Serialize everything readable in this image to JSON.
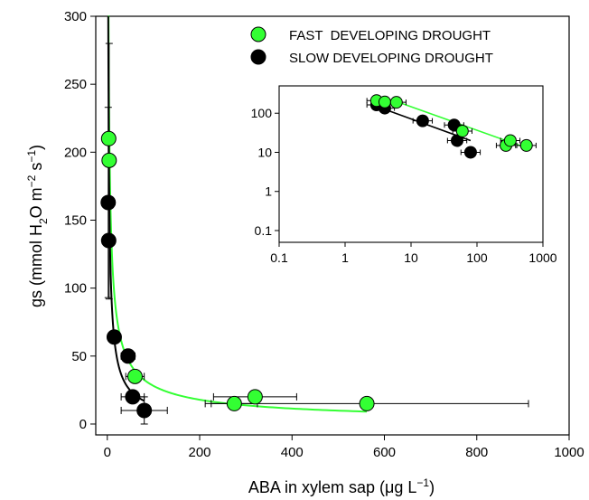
{
  "chart_data": {
    "type": "scatter",
    "main": {
      "xlabel": {
        "before": "ABA in xylem sap (",
        "mu": "μ",
        "after": "g L",
        "sup": "−1",
        "close": ")"
      },
      "ylabel": {
        "before": "gs (mmol H",
        "sub": "2",
        "mid": "O m",
        "sup1": "−2",
        "mid2": " s",
        "sup2": "−1",
        "close": ")"
      },
      "xlim": [
        -25,
        1000
      ],
      "ylim": [
        -8,
        300
      ],
      "xticks": [
        "0",
        "200",
        "400",
        "600",
        "800",
        "1000"
      ],
      "yticks": [
        "0",
        "50",
        "100",
        "150",
        "200",
        "250",
        "300"
      ],
      "series": [
        {
          "name": "FAST  DEVELOPING DROUGHT",
          "color": "#33ff33",
          "points": [
            {
              "x": 3,
              "y": 210,
              "xerr": 2,
              "yerr": 0
            },
            {
              "x": 4,
              "y": 194,
              "xerr": 2,
              "yerr": 0
            },
            {
              "x": 60,
              "y": 35,
              "xerr": 20,
              "yerr": 0
            },
            {
              "x": 275,
              "y": 15,
              "xerr": 50,
              "yerr": 0
            },
            {
              "x": 320,
              "y": 20,
              "xerr": 90,
              "yerr": 0
            },
            {
              "x": 562,
              "y": 15,
              "xerr": 350,
              "yerr": 0
            }
          ]
        },
        {
          "name": "SLOW DEVELOPING DROUGHT",
          "color": "#000000",
          "points": [
            {
              "x": 2,
              "y": 163,
              "xerr": 0,
              "yerr": 70
            },
            {
              "x": 3,
              "y": 135,
              "xerr": 0,
              "yerr": 0
            },
            {
              "x": 15,
              "y": 64,
              "xerr": 5,
              "yerr": 0
            },
            {
              "x": 45,
              "y": 50,
              "xerr": 15,
              "yerr": 0
            },
            {
              "x": 55,
              "y": 20,
              "xerr": 25,
              "yerr": 0
            },
            {
              "x": 80,
              "y": 10,
              "xerr": 50,
              "yerr": 10
            }
          ]
        }
      ],
      "fits": [
        {
          "series": "FAST  DEVELOPING DROUGHT",
          "color": "#33ff33",
          "a": 560,
          "b": 0.65,
          "xmin": 2,
          "xmax": 562
        },
        {
          "series": "SLOW DEVELOPING DROUGHT",
          "color": "#000000",
          "a": 520,
          "b": 0.78,
          "xmin": 2,
          "xmax": 80
        }
      ],
      "extra_error_bars": [
        {
          "x": 4,
          "y": 194,
          "ylow": 92,
          "yhigh": 280
        }
      ]
    },
    "inset": {
      "scale": "log",
      "xlim": [
        0.1,
        1000
      ],
      "ylim": [
        0.05,
        500
      ],
      "xticks": [
        "0.1",
        "1",
        "10",
        "100",
        "1000"
      ],
      "yticks": [
        "0.1",
        "1",
        "10",
        "100"
      ],
      "series": [
        {
          "name": "FAST  DEVELOPING DROUGHT",
          "color": "#33ff33",
          "points": [
            {
              "x": 3,
              "y": 210
            },
            {
              "x": 4,
              "y": 194
            },
            {
              "x": 6,
              "y": 190
            },
            {
              "x": 60,
              "y": 35
            },
            {
              "x": 275,
              "y": 15
            },
            {
              "x": 320,
              "y": 20
            },
            {
              "x": 562,
              "y": 15
            }
          ]
        },
        {
          "name": "SLOW DEVELOPING DROUGHT",
          "color": "#000000",
          "points": [
            {
              "x": 3,
              "y": 163
            },
            {
              "x": 4,
              "y": 135
            },
            {
              "x": 15,
              "y": 64
            },
            {
              "x": 45,
              "y": 50
            },
            {
              "x": 50,
              "y": 20
            },
            {
              "x": 80,
              "y": 10
            }
          ]
        }
      ],
      "fits": [
        {
          "color": "#33ff33",
          "x1": 6,
          "y1": 200,
          "x2": 560,
          "y2": 13
        },
        {
          "color": "#000000",
          "x1": 3,
          "y1": 150,
          "x2": 80,
          "y2": 20
        }
      ]
    },
    "legend": {
      "position": "top-right",
      "entries": [
        {
          "label": "FAST  DEVELOPING DROUGHT",
          "color": "#33ff33"
        },
        {
          "label": "SLOW DEVELOPING DROUGHT",
          "color": "#000000"
        }
      ]
    }
  }
}
